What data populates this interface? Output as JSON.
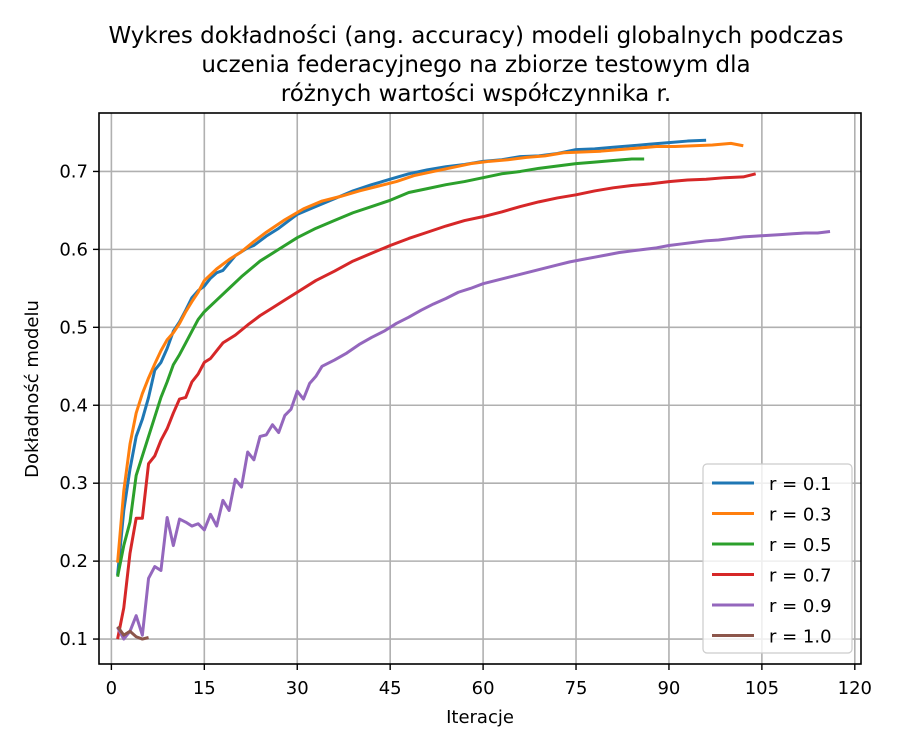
{
  "chart_data": {
    "type": "line",
    "title": [
      "Wykres dokładności (ang. accuracy) modeli globalnych podczas",
      "uczenia federacyjnego na zbiorze testowym dla",
      "różnych wartości współczynnika r."
    ],
    "xlabel": "Iteracje",
    "ylabel": "Dokładność modelu",
    "xlim": [
      -2,
      121
    ],
    "ylim": [
      0.068,
      0.775
    ],
    "xticks": [
      0,
      15,
      30,
      45,
      60,
      75,
      90,
      105,
      120
    ],
    "yticks": [
      0.1,
      0.2,
      0.3,
      0.4,
      0.5,
      0.6,
      0.7
    ],
    "grid": true,
    "legend_position": "lower-right",
    "series": [
      {
        "name": "r = 0.1",
        "color": "#1f77b4",
        "points": [
          [
            1,
            0.182
          ],
          [
            2,
            0.265
          ],
          [
            3,
            0.318
          ],
          [
            4,
            0.36
          ],
          [
            5,
            0.382
          ],
          [
            6,
            0.41
          ],
          [
            7,
            0.445
          ],
          [
            8,
            0.455
          ],
          [
            9,
            0.473
          ],
          [
            10,
            0.495
          ],
          [
            11,
            0.507
          ],
          [
            12,
            0.522
          ],
          [
            13,
            0.538
          ],
          [
            14,
            0.547
          ],
          [
            15,
            0.553
          ],
          [
            16,
            0.563
          ],
          [
            17,
            0.57
          ],
          [
            18,
            0.573
          ],
          [
            20,
            0.592
          ],
          [
            22,
            0.602
          ],
          [
            23,
            0.605
          ],
          [
            25,
            0.617
          ],
          [
            27,
            0.627
          ],
          [
            30,
            0.645
          ],
          [
            33,
            0.655
          ],
          [
            36,
            0.665
          ],
          [
            39,
            0.675
          ],
          [
            42,
            0.683
          ],
          [
            45,
            0.69
          ],
          [
            48,
            0.697
          ],
          [
            51,
            0.702
          ],
          [
            54,
            0.706
          ],
          [
            57,
            0.709
          ],
          [
            60,
            0.713
          ],
          [
            63,
            0.715
          ],
          [
            66,
            0.719
          ],
          [
            69,
            0.72
          ],
          [
            72,
            0.723
          ],
          [
            75,
            0.728
          ],
          [
            78,
            0.729
          ],
          [
            81,
            0.731
          ],
          [
            84,
            0.733
          ],
          [
            87,
            0.735
          ],
          [
            90,
            0.737
          ],
          [
            93,
            0.739
          ],
          [
            96,
            0.74
          ]
        ]
      },
      {
        "name": "r = 0.3",
        "color": "#ff7f0e",
        "points": [
          [
            1,
            0.198
          ],
          [
            2,
            0.29
          ],
          [
            3,
            0.35
          ],
          [
            4,
            0.39
          ],
          [
            5,
            0.415
          ],
          [
            6,
            0.435
          ],
          [
            7,
            0.453
          ],
          [
            8,
            0.47
          ],
          [
            9,
            0.484
          ],
          [
            10,
            0.493
          ],
          [
            11,
            0.505
          ],
          [
            12,
            0.52
          ],
          [
            13,
            0.533
          ],
          [
            14,
            0.545
          ],
          [
            15,
            0.56
          ],
          [
            17,
            0.575
          ],
          [
            19,
            0.587
          ],
          [
            21,
            0.597
          ],
          [
            23,
            0.61
          ],
          [
            25,
            0.622
          ],
          [
            28,
            0.638
          ],
          [
            31,
            0.652
          ],
          [
            34,
            0.662
          ],
          [
            37,
            0.668
          ],
          [
            40,
            0.675
          ],
          [
            43,
            0.681
          ],
          [
            46,
            0.687
          ],
          [
            49,
            0.695
          ],
          [
            52,
            0.7
          ],
          [
            55,
            0.705
          ],
          [
            58,
            0.71
          ],
          [
            61,
            0.713
          ],
          [
            64,
            0.715
          ],
          [
            67,
            0.718
          ],
          [
            70,
            0.72
          ],
          [
            73,
            0.724
          ],
          [
            76,
            0.725
          ],
          [
            79,
            0.726
          ],
          [
            82,
            0.728
          ],
          [
            85,
            0.73
          ],
          [
            88,
            0.732
          ],
          [
            91,
            0.732
          ],
          [
            94,
            0.733
          ],
          [
            97,
            0.734
          ],
          [
            100,
            0.736
          ],
          [
            102,
            0.733
          ]
        ]
      },
      {
        "name": "r = 0.5",
        "color": "#2ca02c",
        "points": [
          [
            1,
            0.18
          ],
          [
            2,
            0.22
          ],
          [
            3,
            0.25
          ],
          [
            4,
            0.31
          ],
          [
            5,
            0.335
          ],
          [
            6,
            0.36
          ],
          [
            7,
            0.385
          ],
          [
            8,
            0.41
          ],
          [
            9,
            0.43
          ],
          [
            10,
            0.452
          ],
          [
            11,
            0.465
          ],
          [
            12,
            0.48
          ],
          [
            13,
            0.495
          ],
          [
            14,
            0.51
          ],
          [
            15,
            0.52
          ],
          [
            17,
            0.535
          ],
          [
            19,
            0.55
          ],
          [
            21,
            0.565
          ],
          [
            24,
            0.585
          ],
          [
            27,
            0.6
          ],
          [
            30,
            0.615
          ],
          [
            33,
            0.627
          ],
          [
            36,
            0.637
          ],
          [
            39,
            0.647
          ],
          [
            42,
            0.655
          ],
          [
            45,
            0.663
          ],
          [
            48,
            0.673
          ],
          [
            51,
            0.678
          ],
          [
            54,
            0.683
          ],
          [
            57,
            0.687
          ],
          [
            60,
            0.692
          ],
          [
            63,
            0.697
          ],
          [
            66,
            0.7
          ],
          [
            69,
            0.704
          ],
          [
            72,
            0.707
          ],
          [
            75,
            0.71
          ],
          [
            78,
            0.712
          ],
          [
            81,
            0.714
          ],
          [
            84,
            0.716
          ],
          [
            86,
            0.716
          ]
        ]
      },
      {
        "name": "r = 0.7",
        "color": "#d62728",
        "points": [
          [
            1,
            0.1
          ],
          [
            2,
            0.14
          ],
          [
            3,
            0.21
          ],
          [
            4,
            0.255
          ],
          [
            5,
            0.255
          ],
          [
            6,
            0.325
          ],
          [
            7,
            0.335
          ],
          [
            8,
            0.355
          ],
          [
            9,
            0.37
          ],
          [
            10,
            0.39
          ],
          [
            11,
            0.408
          ],
          [
            12,
            0.41
          ],
          [
            13,
            0.43
          ],
          [
            14,
            0.44
          ],
          [
            15,
            0.455
          ],
          [
            16,
            0.46
          ],
          [
            17,
            0.47
          ],
          [
            18,
            0.48
          ],
          [
            20,
            0.49
          ],
          [
            22,
            0.503
          ],
          [
            24,
            0.515
          ],
          [
            26,
            0.525
          ],
          [
            28,
            0.535
          ],
          [
            30,
            0.545
          ],
          [
            33,
            0.56
          ],
          [
            36,
            0.572
          ],
          [
            39,
            0.585
          ],
          [
            42,
            0.595
          ],
          [
            45,
            0.605
          ],
          [
            48,
            0.614
          ],
          [
            51,
            0.622
          ],
          [
            54,
            0.63
          ],
          [
            57,
            0.637
          ],
          [
            60,
            0.642
          ],
          [
            63,
            0.648
          ],
          [
            66,
            0.655
          ],
          [
            69,
            0.661
          ],
          [
            72,
            0.666
          ],
          [
            75,
            0.67
          ],
          [
            78,
            0.675
          ],
          [
            81,
            0.679
          ],
          [
            84,
            0.682
          ],
          [
            87,
            0.684
          ],
          [
            90,
            0.687
          ],
          [
            93,
            0.689
          ],
          [
            96,
            0.69
          ],
          [
            99,
            0.692
          ],
          [
            102,
            0.693
          ],
          [
            104,
            0.697
          ]
        ]
      },
      {
        "name": "r = 0.9",
        "color": "#9467bd",
        "points": [
          [
            1,
            0.115
          ],
          [
            2,
            0.1
          ],
          [
            3,
            0.11
          ],
          [
            4,
            0.13
          ],
          [
            5,
            0.105
          ],
          [
            6,
            0.178
          ],
          [
            7,
            0.193
          ],
          [
            8,
            0.188
          ],
          [
            9,
            0.256
          ],
          [
            10,
            0.22
          ],
          [
            11,
            0.254
          ],
          [
            12,
            0.25
          ],
          [
            13,
            0.245
          ],
          [
            14,
            0.248
          ],
          [
            15,
            0.24
          ],
          [
            16,
            0.26
          ],
          [
            17,
            0.245
          ],
          [
            18,
            0.278
          ],
          [
            19,
            0.265
          ],
          [
            20,
            0.305
          ],
          [
            21,
            0.295
          ],
          [
            22,
            0.34
          ],
          [
            23,
            0.33
          ],
          [
            24,
            0.36
          ],
          [
            25,
            0.362
          ],
          [
            26,
            0.375
          ],
          [
            27,
            0.365
          ],
          [
            28,
            0.387
          ],
          [
            29,
            0.395
          ],
          [
            30,
            0.418
          ],
          [
            31,
            0.408
          ],
          [
            32,
            0.428
          ],
          [
            33,
            0.437
          ],
          [
            34,
            0.45
          ],
          [
            36,
            0.458
          ],
          [
            38,
            0.467
          ],
          [
            40,
            0.478
          ],
          [
            42,
            0.487
          ],
          [
            44,
            0.495
          ],
          [
            46,
            0.505
          ],
          [
            48,
            0.513
          ],
          [
            50,
            0.522
          ],
          [
            52,
            0.53
          ],
          [
            54,
            0.537
          ],
          [
            56,
            0.545
          ],
          [
            58,
            0.55
          ],
          [
            60,
            0.556
          ],
          [
            62,
            0.56
          ],
          [
            64,
            0.564
          ],
          [
            66,
            0.568
          ],
          [
            68,
            0.572
          ],
          [
            70,
            0.576
          ],
          [
            72,
            0.58
          ],
          [
            74,
            0.584
          ],
          [
            76,
            0.587
          ],
          [
            78,
            0.59
          ],
          [
            80,
            0.593
          ],
          [
            82,
            0.596
          ],
          [
            84,
            0.598
          ],
          [
            86,
            0.6
          ],
          [
            88,
            0.602
          ],
          [
            90,
            0.605
          ],
          [
            92,
            0.607
          ],
          [
            94,
            0.609
          ],
          [
            96,
            0.611
          ],
          [
            98,
            0.612
          ],
          [
            100,
            0.614
          ],
          [
            102,
            0.616
          ],
          [
            104,
            0.617
          ],
          [
            106,
            0.618
          ],
          [
            108,
            0.619
          ],
          [
            110,
            0.62
          ],
          [
            112,
            0.621
          ],
          [
            114,
            0.621
          ],
          [
            116,
            0.623
          ]
        ]
      },
      {
        "name": "r = 1.0",
        "color": "#8c564b",
        "points": [
          [
            1,
            0.116
          ],
          [
            2,
            0.105
          ],
          [
            3,
            0.11
          ],
          [
            4,
            0.103
          ],
          [
            5,
            0.1
          ],
          [
            6,
            0.102
          ]
        ]
      }
    ]
  }
}
